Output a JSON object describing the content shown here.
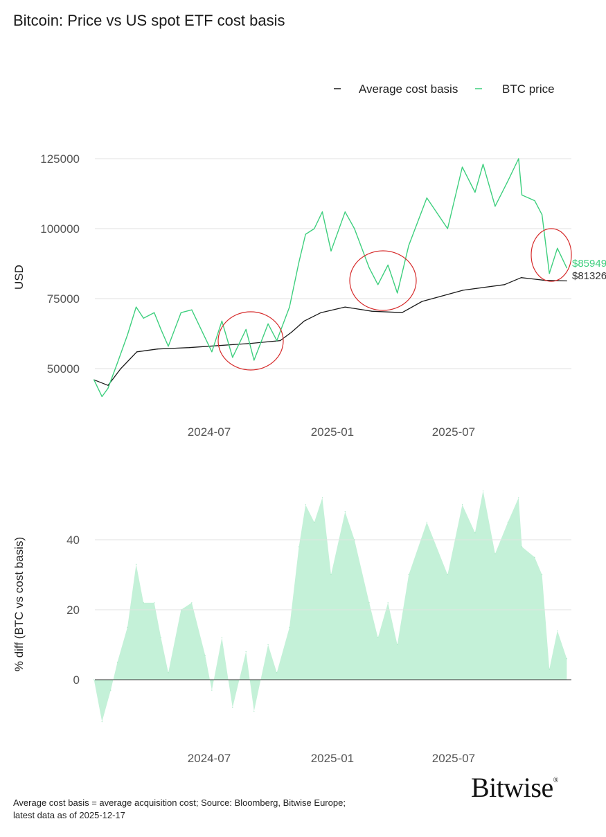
{
  "title": "Bitcoin: Price vs US spot ETF cost basis",
  "footer": {
    "line1": "Average cost basis = average acquisition cost; Source: Bloomberg, Bitwise Europe;",
    "line2": "latest data as of 2025-12-17"
  },
  "logo": "Bitwise",
  "colors": {
    "btc": "#3ecf7e",
    "cost": "#1a1a1a",
    "area": "#c4f1d8",
    "annotation": "#d62a2a"
  },
  "chart_data": [
    {
      "type": "line",
      "title": "Bitcoin: Price vs US spot ETF cost basis",
      "ylabel": "USD",
      "xlabel": "",
      "ylim": [
        38000,
        128000
      ],
      "yticks": [
        "50000",
        "75000",
        "100000",
        "125000"
      ],
      "xticks": [
        "2024-07",
        "2025-01",
        "2025-07"
      ],
      "grid": true,
      "legend": "top-right",
      "end_labels": {
        "btc": "$85949",
        "cost": "$81326"
      },
      "series": [
        {
          "name": "Average cost basis",
          "color": "#1a1a1a",
          "points": [
            [
              "2024-01-11",
              46000
            ],
            [
              "2024-02-01",
              44000
            ],
            [
              "2024-02-20",
              50000
            ],
            [
              "2024-03-15",
              56000
            ],
            [
              "2024-04-15",
              57000
            ],
            [
              "2024-06-01",
              57500
            ],
            [
              "2024-07-01",
              58000
            ],
            [
              "2024-09-01",
              59000
            ],
            [
              "2024-10-15",
              60000
            ],
            [
              "2024-11-01",
              63000
            ],
            [
              "2024-11-20",
              67000
            ],
            [
              "2024-12-15",
              70000
            ],
            [
              "2025-01-20",
              72000
            ],
            [
              "2025-03-01",
              70500
            ],
            [
              "2025-04-15",
              70000
            ],
            [
              "2025-05-15",
              74000
            ],
            [
              "2025-07-15",
              78000
            ],
            [
              "2025-09-15",
              80000
            ],
            [
              "2025-10-10",
              82500
            ],
            [
              "2025-11-15",
              81500
            ],
            [
              "2025-12-17",
              81326
            ]
          ]
        },
        {
          "name": "BTC price",
          "color": "#3ecf7e",
          "points": [
            [
              "2024-01-11",
              46000
            ],
            [
              "2024-01-23",
              40000
            ],
            [
              "2024-02-01",
              43000
            ],
            [
              "2024-02-15",
              52000
            ],
            [
              "2024-03-01",
              62000
            ],
            [
              "2024-03-14",
              72000
            ],
            [
              "2024-03-25",
              68000
            ],
            [
              "2024-04-10",
              70000
            ],
            [
              "2024-04-20",
              64000
            ],
            [
              "2024-05-01",
              58000
            ],
            [
              "2024-05-20",
              70000
            ],
            [
              "2024-06-05",
              71000
            ],
            [
              "2024-06-25",
              61000
            ],
            [
              "2024-07-05",
              56000
            ],
            [
              "2024-07-20",
              67000
            ],
            [
              "2024-08-05",
              54000
            ],
            [
              "2024-08-25",
              64000
            ],
            [
              "2024-09-06",
              53000
            ],
            [
              "2024-09-27",
              66000
            ],
            [
              "2024-10-10",
              60000
            ],
            [
              "2024-10-29",
              72000
            ],
            [
              "2024-11-12",
              88000
            ],
            [
              "2024-11-22",
              98000
            ],
            [
              "2024-12-05",
              100000
            ],
            [
              "2024-12-17",
              106000
            ],
            [
              "2024-12-30",
              92000
            ],
            [
              "2025-01-20",
              106000
            ],
            [
              "2025-02-03",
              100000
            ],
            [
              "2025-02-25",
              86000
            ],
            [
              "2025-03-10",
              80000
            ],
            [
              "2025-03-25",
              87000
            ],
            [
              "2025-04-08",
              77000
            ],
            [
              "2025-04-25",
              94000
            ],
            [
              "2025-05-22",
              111000
            ],
            [
              "2025-06-22",
              100000
            ],
            [
              "2025-07-14",
              122000
            ],
            [
              "2025-08-02",
              113000
            ],
            [
              "2025-08-14",
              123000
            ],
            [
              "2025-09-01",
              108000
            ],
            [
              "2025-09-20",
              117000
            ],
            [
              "2025-10-06",
              125000
            ],
            [
              "2025-10-11",
              112000
            ],
            [
              "2025-10-30",
              110000
            ],
            [
              "2025-11-10",
              105000
            ],
            [
              "2025-11-21",
              84000
            ],
            [
              "2025-12-03",
              93000
            ],
            [
              "2025-12-17",
              85949
            ]
          ]
        }
      ]
    },
    {
      "type": "area",
      "ylabel": "% diff (BTC vs cost basis)",
      "xlabel": "",
      "ylim": [
        -17,
        57
      ],
      "yticks": [
        "0",
        "20",
        "40"
      ],
      "xticks": [
        "2024-07",
        "2025-01",
        "2025-07"
      ],
      "grid": true,
      "series": [
        {
          "color": "#c4f1d8",
          "points": [
            [
              "2024-01-11",
              0
            ],
            [
              "2024-01-23",
              -12
            ],
            [
              "2024-02-05",
              -3
            ],
            [
              "2024-02-15",
              5
            ],
            [
              "2024-03-01",
              15
            ],
            [
              "2024-03-14",
              33
            ],
            [
              "2024-03-25",
              22
            ],
            [
              "2024-04-10",
              22
            ],
            [
              "2024-04-20",
              12
            ],
            [
              "2024-05-01",
              2
            ],
            [
              "2024-05-20",
              20
            ],
            [
              "2024-06-05",
              22
            ],
            [
              "2024-06-25",
              7
            ],
            [
              "2024-07-05",
              -3
            ],
            [
              "2024-07-20",
              12
            ],
            [
              "2024-08-05",
              -8
            ],
            [
              "2024-08-25",
              8
            ],
            [
              "2024-09-06",
              -9
            ],
            [
              "2024-09-27",
              10
            ],
            [
              "2024-10-10",
              2
            ],
            [
              "2024-10-29",
              15
            ],
            [
              "2024-11-12",
              38
            ],
            [
              "2024-11-22",
              50
            ],
            [
              "2024-12-05",
              45
            ],
            [
              "2024-12-17",
              52
            ],
            [
              "2024-12-30",
              30
            ],
            [
              "2025-01-20",
              48
            ],
            [
              "2025-02-03",
              40
            ],
            [
              "2025-02-25",
              22
            ],
            [
              "2025-03-10",
              12
            ],
            [
              "2025-03-25",
              22
            ],
            [
              "2025-04-08",
              10
            ],
            [
              "2025-04-25",
              30
            ],
            [
              "2025-05-22",
              45
            ],
            [
              "2025-06-22",
              30
            ],
            [
              "2025-07-14",
              50
            ],
            [
              "2025-08-02",
              42
            ],
            [
              "2025-08-14",
              54
            ],
            [
              "2025-09-01",
              36
            ],
            [
              "2025-09-20",
              45
            ],
            [
              "2025-10-06",
              52
            ],
            [
              "2025-10-11",
              38
            ],
            [
              "2025-10-30",
              35
            ],
            [
              "2025-11-10",
              30
            ],
            [
              "2025-11-21",
              3
            ],
            [
              "2025-12-03",
              14
            ],
            [
              "2025-12-17",
              6
            ]
          ]
        }
      ]
    }
  ]
}
